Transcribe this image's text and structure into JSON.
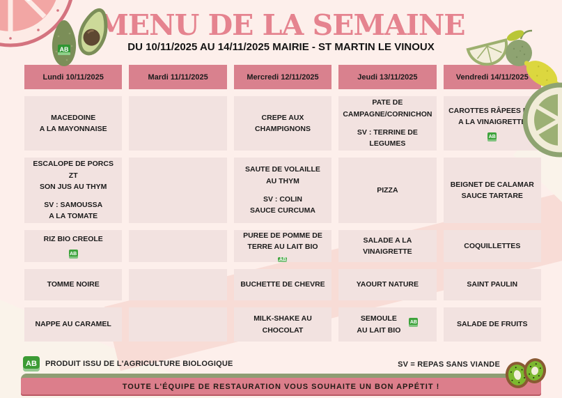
{
  "title": "MENU DE LA SEMAINE",
  "subtitle": "DU 10/11/2025 AU 14/11/2025 MAIRIE - ST MARTIN LE VINOUX",
  "colors": {
    "page_bg": "#fdefeb",
    "header_pink": "#d9818e",
    "cell_pink": "#f2e2e0",
    "title_pink": "#e5838f",
    "sage_green": "#8e9d73",
    "banner_pink": "#dc7e8b",
    "bio_green": "#3c9b35"
  },
  "table": {
    "day_headers": [
      "Lundi 10/11/2025",
      "Mardi 11/11/2025",
      "Mercredi 12/11/2025",
      "Jeudi 13/11/2025",
      "Vendredi 14/11/2025"
    ],
    "rows": [
      {
        "cells": [
          {
            "lines": [
              "MACEDOINE",
              "A LA MAYONNAISE"
            ]
          },
          {},
          {
            "lines": [
              "CREPE AUX CHAMPIGNONS"
            ]
          },
          {
            "lines": [
              "PATE DE",
              "CAMPAGNE/CORNICHON"
            ],
            "sv": [
              "SV : TERRINE DE LEGUMES"
            ]
          },
          {
            "lines": [
              "CAROTTES RÂPEES BIO",
              "A LA VINAIGRETTE"
            ],
            "bio": "below"
          }
        ]
      },
      {
        "cells": [
          {
            "lines": [
              "ESCALOPE DE PORCS ZT",
              "SON JUS AU THYM"
            ],
            "sv": [
              "SV : SAMOUSSA",
              "A LA TOMATE"
            ]
          },
          {},
          {
            "lines": [
              "SAUTE DE VOLAILLE",
              "AU THYM"
            ],
            "sv": [
              "SV : COLIN",
              "SAUCE CURCUMA"
            ]
          },
          {
            "lines": [
              "PIZZA"
            ]
          },
          {
            "lines": [
              "BEIGNET DE CALAMAR",
              "SAUCE TARTARE"
            ]
          }
        ]
      },
      {
        "cells": [
          {
            "lines": [
              "RIZ BIO CREOLE"
            ],
            "bio": "below"
          },
          {},
          {
            "lines": [
              "PUREE DE POMME DE",
              "TERRE AU LAIT BIO"
            ],
            "bio": "below"
          },
          {
            "lines": [
              "SALADE A LA VINAIGRETTE"
            ]
          },
          {
            "lines": [
              "COQUILLETTES"
            ]
          }
        ]
      },
      {
        "cells": [
          {
            "lines": [
              "TOMME NOIRE"
            ]
          },
          {},
          {
            "lines": [
              "BUCHETTE DE CHEVRE"
            ]
          },
          {
            "lines": [
              "YAOURT NATURE"
            ]
          },
          {
            "lines": [
              "SAINT PAULIN"
            ]
          }
        ]
      },
      {
        "cells": [
          {
            "lines": [
              "NAPPE AU CARAMEL"
            ]
          },
          {},
          {
            "lines": [
              "MILK-SHAKE AU CHOCOLAT"
            ]
          },
          {
            "lines": [
              "SEMOULE",
              "AU LAIT BIO"
            ],
            "bio": "right"
          },
          {
            "lines": [
              "SALADE DE FRUITS"
            ]
          }
        ]
      }
    ]
  },
  "legend": {
    "bio_logo_text": "AB",
    "bio_label": "PRODUIT ISSU DE L'AGRICULTURE BIOLOGIQUE",
    "sv_label": "SV = REPAS SANS VIANDE"
  },
  "footer_banner": "TOUTE L'ÉQUIPE DE RESTAURATION VOUS SOUHAITE UN BON APPÉTIT !",
  "icons": {
    "decorations": [
      "grapefruit-slice-icon",
      "avocado-whole-icon",
      "avocado-half-icon",
      "lime-wedge-icon",
      "lime-whole-icon",
      "lemon-icon",
      "lime-slice-icon",
      "kiwi-icon",
      "bio-ab-icon"
    ]
  }
}
